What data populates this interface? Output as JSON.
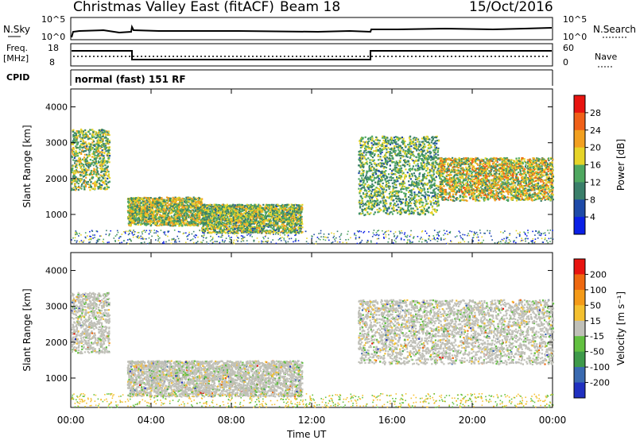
{
  "header": {
    "title": "Christmas Valley East (fitACF)",
    "beam": "Beam 18",
    "date": "15/Oct/2016"
  },
  "strips": {
    "nsky_label": "N.Sky",
    "nsky_ticks": [
      "10^5",
      "10^0"
    ],
    "nsearch_label": "N.Search",
    "nsearch_ticks": [
      "10^5",
      "10^0"
    ],
    "freq_label": "Freq.",
    "freq_unit": "[MHz]",
    "freq_ticks": [
      "18",
      "8"
    ],
    "nave_label": "Nave",
    "nave_ticks": [
      "60",
      "0"
    ],
    "cpid_label": "CPID",
    "cpid_text": "normal (fast) 151 RF"
  },
  "chart_data": [
    {
      "type": "heatmap",
      "title": "",
      "xlabel": "Time UT",
      "ylabel": "Slant Range [km]",
      "x_ticks": [
        "00:00",
        "04:00",
        "08:00",
        "12:00",
        "16:00",
        "20:00",
        "00:00"
      ],
      "y_ticks": [
        "4000",
        "3000",
        "2000",
        "1000"
      ],
      "xlim_hours": [
        0,
        24
      ],
      "ylim_km": [
        180,
        4500
      ],
      "colorbar_label": "Power [dB]",
      "colorbar_ticks": [
        "28",
        "24",
        "20",
        "16",
        "12",
        "8",
        "4"
      ],
      "colorscale": [
        "#0a20e6",
        "#1e4aa8",
        "#3a7f6a",
        "#4fa860",
        "#e6d428",
        "#f2a020",
        "#f06018",
        "#e81410"
      ],
      "echo_regions": [
        {
          "t": [
            0.0,
            1.9
          ],
          "range_km": [
            1700,
            3400
          ],
          "peak_db": 22
        },
        {
          "t": [
            2.8,
            6.5
          ],
          "range_km": [
            700,
            1500
          ],
          "peak_db": 24
        },
        {
          "t": [
            6.5,
            11.5
          ],
          "range_km": [
            500,
            1300
          ],
          "peak_db": 22
        },
        {
          "t": [
            14.3,
            18.3
          ],
          "range_km": [
            1000,
            3200
          ],
          "peak_db": 20
        },
        {
          "t": [
            18.3,
            24.0
          ],
          "range_km": [
            1400,
            2600
          ],
          "peak_db": 26
        }
      ]
    },
    {
      "type": "heatmap",
      "title": "",
      "xlabel": "Time UT",
      "ylabel": "Slant Range [km]",
      "x_ticks": [
        "00:00",
        "04:00",
        "08:00",
        "12:00",
        "16:00",
        "20:00",
        "00:00"
      ],
      "y_ticks": [
        "4000",
        "3000",
        "2000",
        "1000"
      ],
      "xlim_hours": [
        0,
        24
      ],
      "ylim_km": [
        180,
        4500
      ],
      "colorbar_label": "Velocity [m s⁻¹]",
      "colorbar_ticks": [
        "200",
        "100",
        "50",
        "15",
        "-15",
        "-50",
        "-100",
        "-200"
      ],
      "colorscale": [
        "#2030c0",
        "#3a6ab0",
        "#3e9a4a",
        "#62c040",
        "#c0c0b8",
        "#f4c030",
        "#f49a18",
        "#ee6810",
        "#e81410"
      ],
      "echo_regions": [
        {
          "t": [
            0.0,
            1.9
          ],
          "range_km": [
            1700,
            3400
          ],
          "velocity": 0
        },
        {
          "t": [
            2.8,
            11.5
          ],
          "range_km": [
            500,
            1500
          ],
          "velocity": 0
        },
        {
          "t": [
            14.3,
            24.0
          ],
          "range_km": [
            1400,
            3200
          ],
          "velocity": 0
        }
      ]
    }
  ]
}
